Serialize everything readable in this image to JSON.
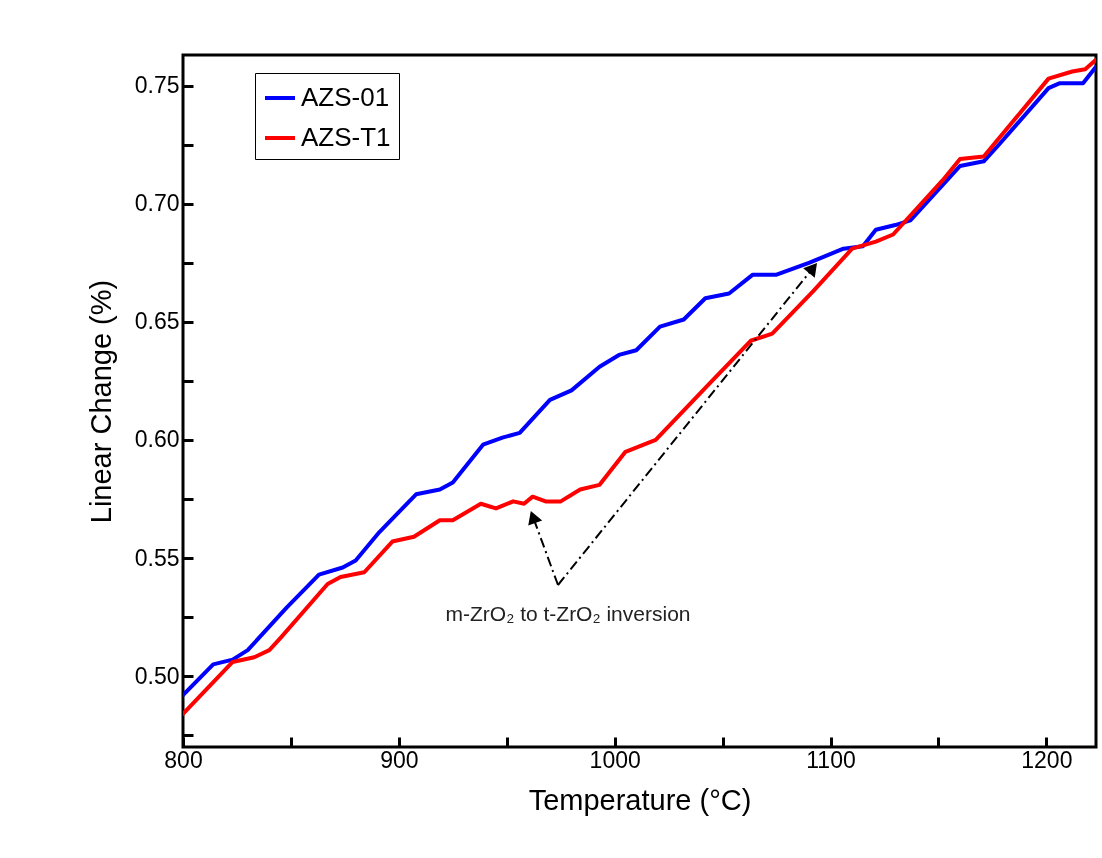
{
  "chart_data": {
    "type": "line",
    "xlabel": "Temperature (°C)",
    "ylabel": "Linear Change (%)",
    "xlim": [
      800,
      1223
    ],
    "ylim": [
      0.47,
      0.763
    ],
    "xticks": [
      800,
      {
        "value": 850,
        "label": null
      },
      900,
      {
        "value": 950,
        "label": null
      },
      1000,
      {
        "value": 1050,
        "label": null
      },
      1100,
      {
        "value": 1150,
        "label": null
      },
      1200
    ],
    "yticks": [
      {
        "value": 0.475,
        "label": null
      },
      {
        "value": 0.5,
        "label": "0.50"
      },
      {
        "value": 0.525,
        "label": null
      },
      {
        "value": 0.55,
        "label": "0.55"
      },
      {
        "value": 0.575,
        "label": null
      },
      {
        "value": 0.6,
        "label": "0.60"
      },
      {
        "value": 0.625,
        "label": null
      },
      {
        "value": 0.65,
        "label": "0.65"
      },
      {
        "value": 0.675,
        "label": null
      },
      {
        "value": 0.7,
        "label": "0.70"
      },
      {
        "value": 0.725,
        "label": null
      },
      {
        "value": 0.75,
        "label": "0.75"
      }
    ],
    "grid": false,
    "legend": "top left",
    "line_style": "solid",
    "annotations": [
      "m-ZrO₂  to  t-ZrO₂ inversion"
    ],
    "series": [
      {
        "name": "AZS-01",
        "color": "#0000ff",
        "x": [
          800,
          814,
          823,
          830,
          848,
          863,
          874,
          880,
          891,
          908,
          919,
          925,
          939,
          948,
          956,
          970,
          980,
          993,
          1002,
          1010,
          1021,
          1032,
          1042,
          1053,
          1064,
          1075,
          1090,
          1106,
          1115,
          1121,
          1130,
          1137,
          1154,
          1160,
          1171,
          1178,
          1201,
          1206,
          1217,
          1223
        ],
        "values": [
          0.492,
          0.505,
          0.507,
          0.511,
          0.529,
          0.543,
          0.546,
          0.549,
          0.561,
          0.577,
          0.579,
          0.582,
          0.598,
          0.601,
          0.603,
          0.617,
          0.621,
          0.631,
          0.636,
          0.638,
          0.648,
          0.651,
          0.66,
          0.662,
          0.67,
          0.67,
          0.675,
          0.681,
          0.682,
          0.689,
          0.691,
          0.693,
          0.71,
          0.716,
          0.718,
          0.725,
          0.749,
          0.751,
          0.751,
          0.758
        ]
      },
      {
        "name": "AZS-T1",
        "color": "#ff0000",
        "x": [
          800,
          823,
          833,
          840,
          845,
          867,
          873,
          884,
          897,
          907,
          919,
          925,
          938,
          945,
          953,
          958,
          962,
          968,
          975,
          984,
          993,
          1005,
          1019,
          1044,
          1063,
          1073,
          1092,
          1110,
          1121,
          1129,
          1152,
          1160,
          1171,
          1201,
          1212,
          1218,
          1223
        ],
        "values": [
          0.484,
          0.506,
          0.508,
          0.511,
          0.516,
          0.539,
          0.542,
          0.544,
          0.557,
          0.559,
          0.566,
          0.566,
          0.573,
          0.571,
          0.574,
          0.573,
          0.576,
          0.574,
          0.574,
          0.579,
          0.581,
          0.595,
          0.6,
          0.624,
          0.642,
          0.645,
          0.663,
          0.681,
          0.684,
          0.687,
          0.71,
          0.719,
          0.72,
          0.753,
          0.756,
          0.757,
          0.761
        ]
      }
    ]
  }
}
